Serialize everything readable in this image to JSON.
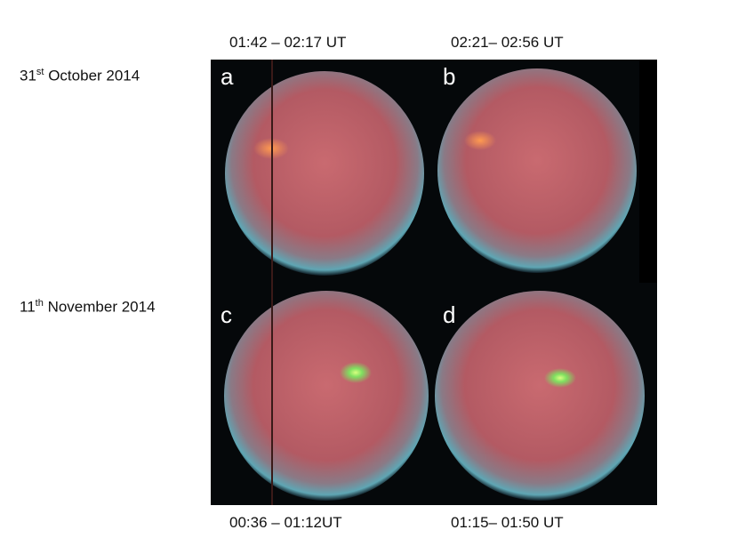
{
  "times_top": [
    "01:42 – 02:17 UT",
    "02:21– 02:56 UT"
  ],
  "times_bottom": [
    "00:36 – 01:12UT",
    "01:15– 01:50 UT"
  ],
  "dates": [
    {
      "day": "31",
      "suffix": "st",
      "rest": " October 2014"
    },
    {
      "day": "11",
      "suffix": "th",
      "rest": " November 2014"
    }
  ],
  "panels": [
    "a",
    "b",
    "c",
    "d"
  ]
}
